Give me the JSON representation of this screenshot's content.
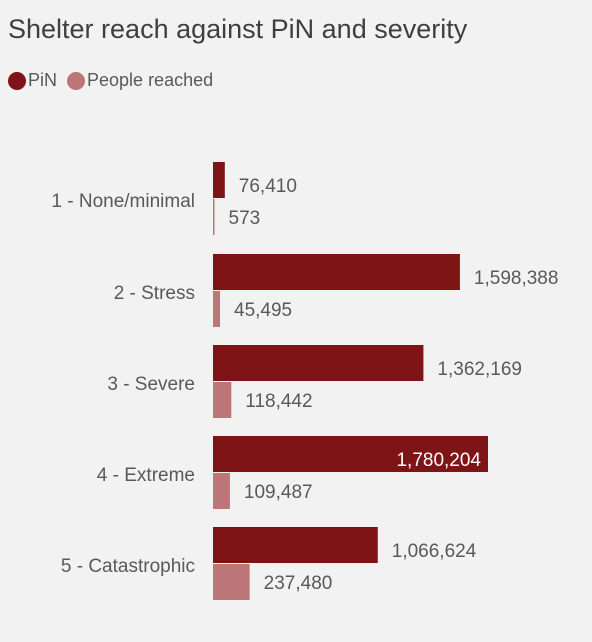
{
  "chart_data": {
    "type": "bar",
    "orientation": "horizontal",
    "title": "Shelter reach against PiN and severity",
    "categories": [
      "1 - None/minimal",
      "2 - Stress",
      "3 - Severe",
      "4 - Extreme",
      "5 - Catastrophic"
    ],
    "series": [
      {
        "name": "PiN",
        "color": "#7e1416",
        "values": [
          76410,
          1598388,
          1362169,
          1780204,
          1066624
        ],
        "labels": [
          "76,410",
          "1,598,388",
          "1,362,169",
          "1,780,204",
          "1,066,624"
        ]
      },
      {
        "name": "People reached",
        "color": "#bd7677",
        "values": [
          573,
          45495,
          118442,
          109487,
          237480
        ],
        "labels": [
          "573",
          "45,495",
          "118,442",
          "109,487",
          "237,480"
        ]
      }
    ],
    "xlim": [
      0,
      2000000
    ],
    "legend": "top-left",
    "grid": false
  }
}
